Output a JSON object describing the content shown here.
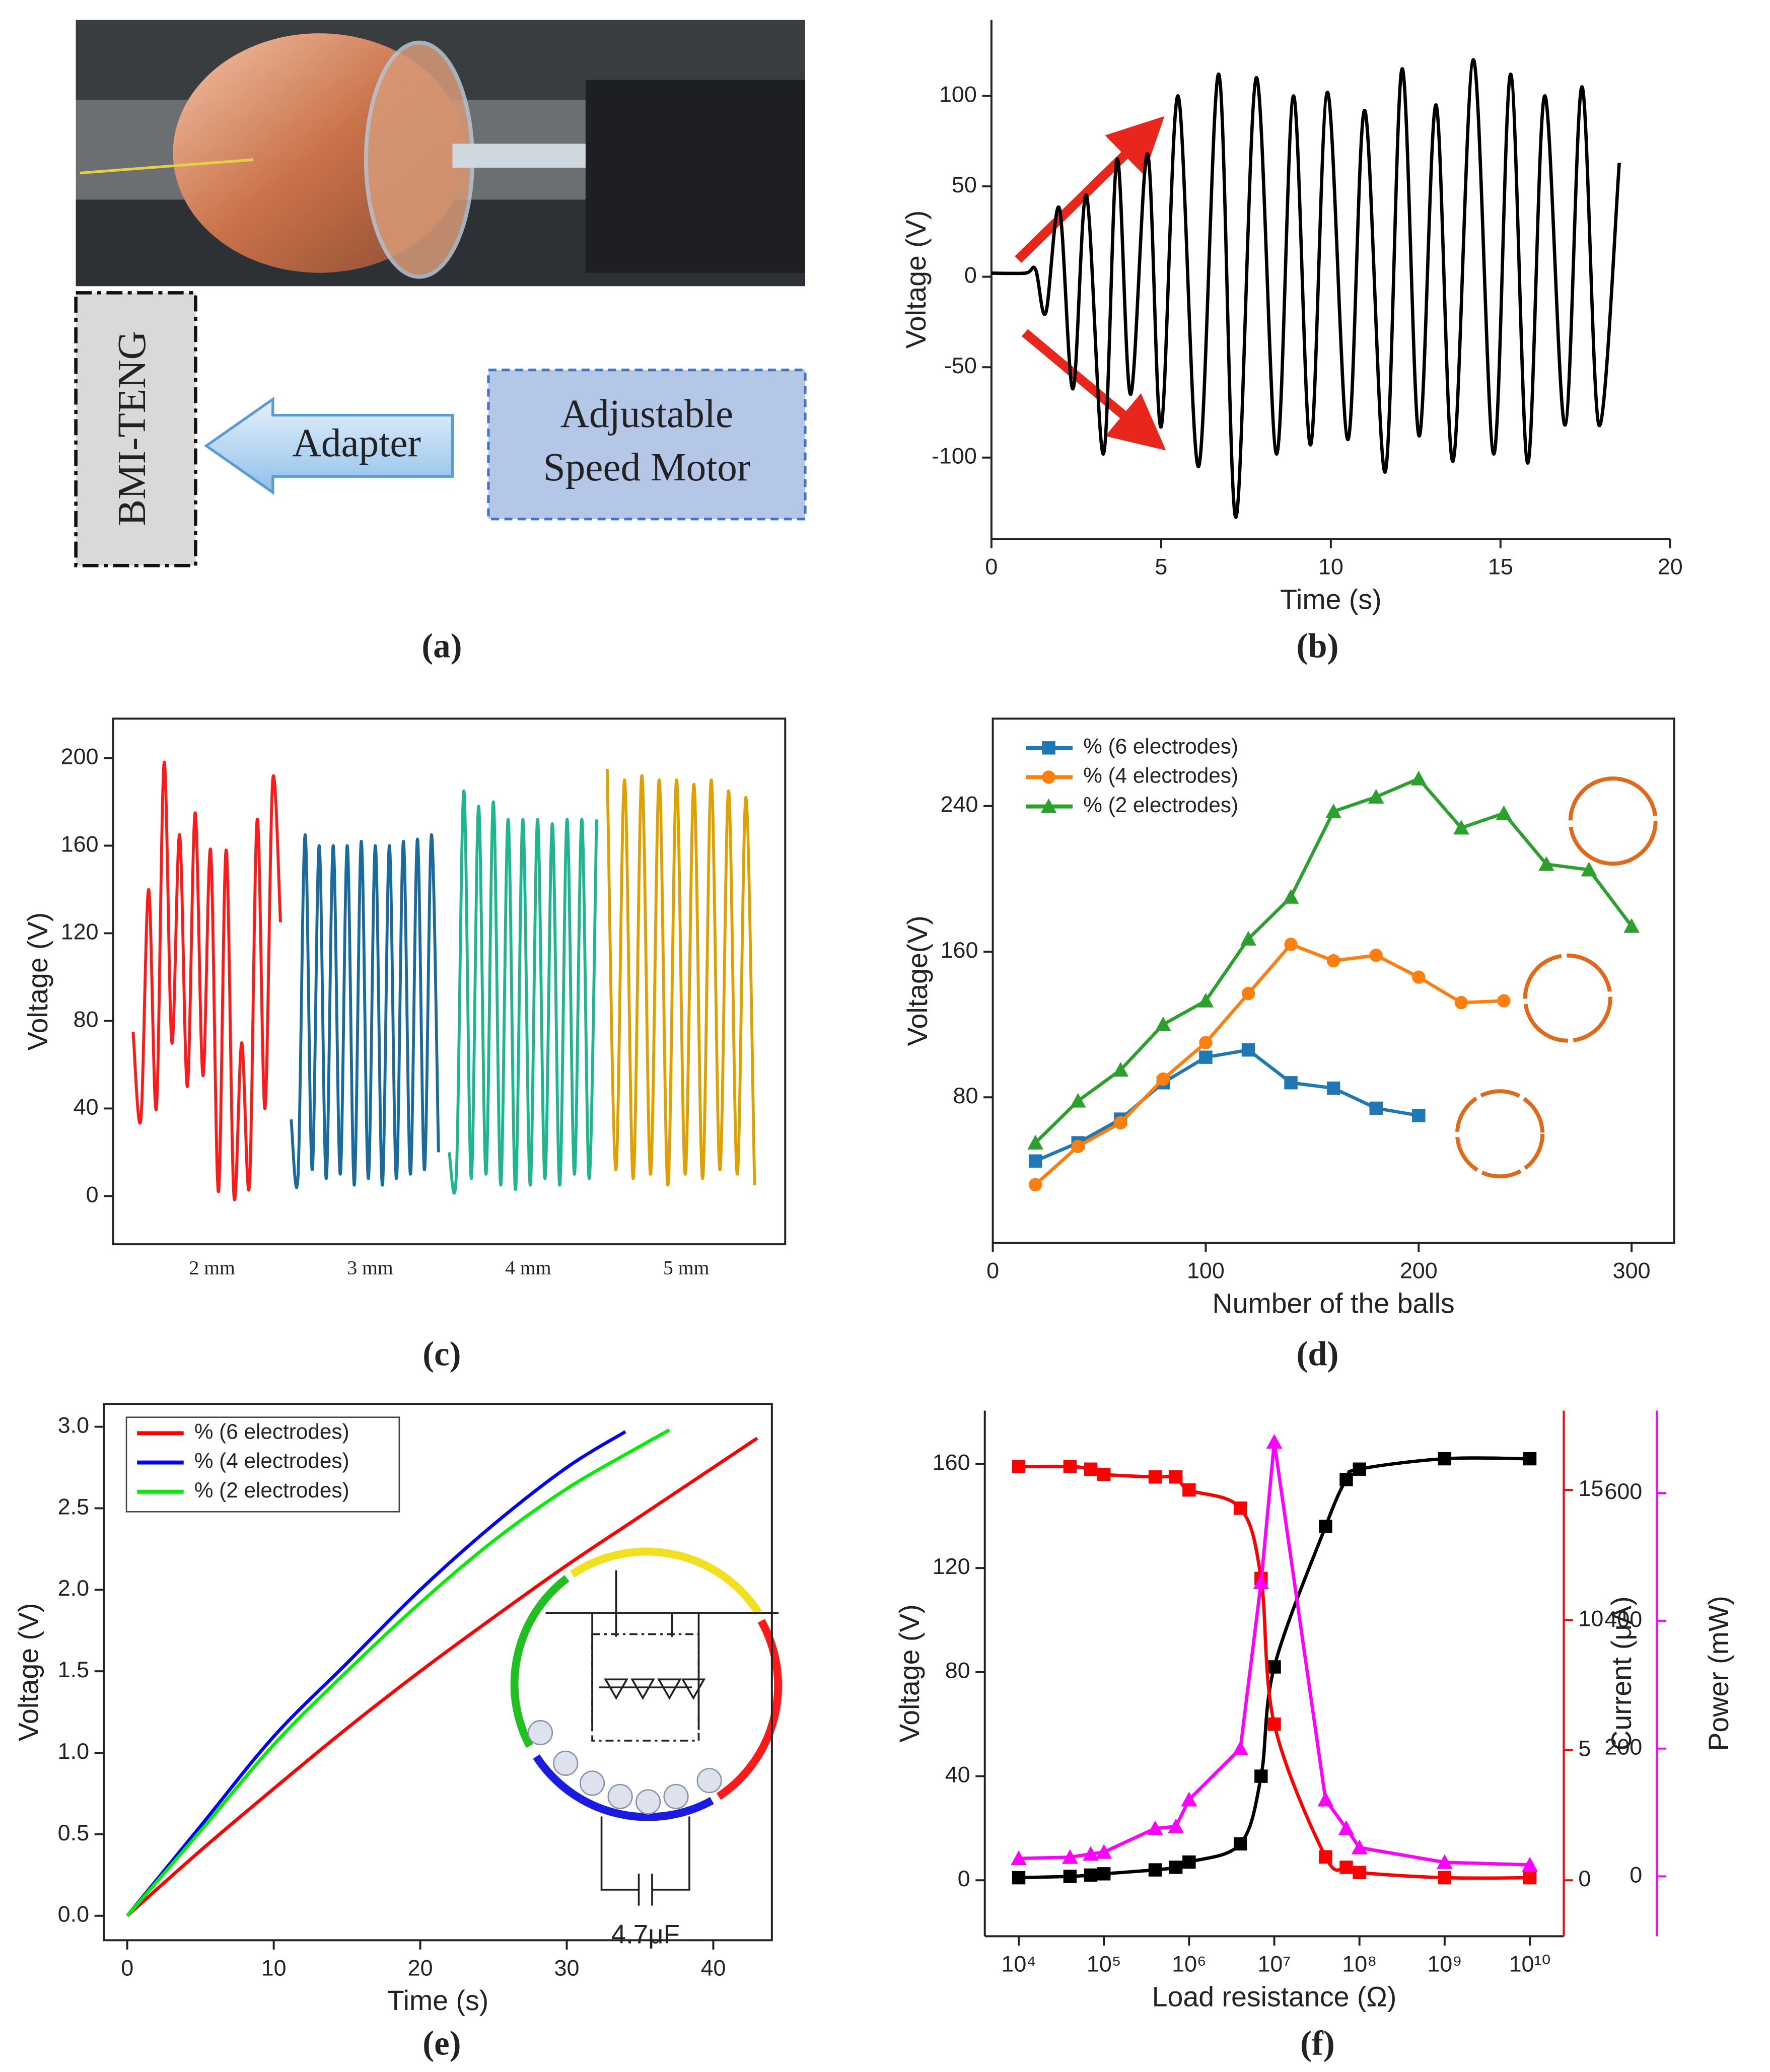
{
  "diagram": {
    "left_box": "BMI-TENG",
    "arrow": "Adapter",
    "right_box": [
      "Adjustable",
      "Speed Motor"
    ]
  },
  "captions": [
    "(a)",
    "(b)",
    "(c)",
    "(d)",
    "(e)",
    "(f)"
  ],
  "chart_data": [
    {
      "type": "line",
      "xlabel": "Time (s)",
      "ylabel": "Voltage (V)",
      "frame": "axes",
      "smooth": true,
      "xlim": [
        0,
        20
      ],
      "ylim": [
        -145,
        142
      ],
      "xticks": [
        0,
        5,
        10,
        15,
        20
      ],
      "yticks": [
        -100,
        -50,
        0,
        50,
        100
      ],
      "series": [
        {
          "color": "#000000",
          "x": [
            0,
            1,
            1.3,
            1.6,
            2.0,
            2.4,
            2.8,
            3.3,
            3.7,
            4.1,
            4.6,
            5.0,
            5.5,
            6.1,
            6.7,
            7.2,
            7.8,
            8.4,
            8.9,
            9.4,
            9.9,
            10.5,
            11.0,
            11.6,
            12.1,
            12.6,
            13.1,
            13.6,
            14.2,
            14.8,
            15.3,
            15.8,
            16.3,
            16.9,
            17.4,
            17.9,
            18.5
          ],
          "values": [
            2,
            2,
            4,
            -20,
            38,
            -62,
            45,
            -98,
            65,
            -65,
            68,
            -83,
            100,
            -105,
            112,
            -133,
            110,
            -98,
            100,
            -93,
            102,
            -90,
            92,
            -108,
            115,
            -88,
            95,
            -102,
            120,
            -98,
            112,
            -103,
            100,
            -82,
            105,
            -82,
            63
          ]
        }
      ]
    },
    {
      "type": "line",
      "ylabel": "Voltage (V)",
      "frame": "box",
      "smooth": true,
      "ylim": [
        -22,
        218
      ],
      "yticks": [
        0,
        40,
        80,
        120,
        160,
        200
      ],
      "series": [
        {
          "name": "2 mm",
          "color": "#ff1a1a",
          "values": [
            75,
            35,
            140,
            40,
            198,
            70,
            165,
            50,
            175,
            55,
            158,
            2,
            158,
            0,
            70,
            5,
            172,
            40,
            190,
            125
          ]
        },
        {
          "name": "3 mm",
          "color": "#1b6a9c",
          "values": [
            35,
            10,
            165,
            12,
            160,
            8,
            160,
            10,
            160,
            5,
            162,
            8,
            160,
            5,
            160,
            8,
            162,
            10,
            163,
            12,
            165,
            20
          ]
        },
        {
          "name": "4 mm",
          "color": "#1fb58f",
          "values": [
            20,
            12,
            185,
            8,
            178,
            10,
            180,
            5,
            172,
            3,
            172,
            5,
            172,
            8,
            170,
            5,
            172,
            10,
            172,
            8,
            172
          ]
        },
        {
          "name": "5 mm",
          "color": "#e0a000",
          "values": [
            195,
            12,
            190,
            8,
            192,
            10,
            190,
            5,
            190,
            10,
            188,
            8,
            190,
            12,
            185,
            10,
            182,
            5
          ]
        }
      ]
    },
    {
      "type": "line",
      "xlabel": "Number of the balls",
      "ylabel": "Voltage(V)",
      "frame": "box",
      "smooth": false,
      "legend": "upper left",
      "xlim": [
        0,
        320
      ],
      "ylim": [
        0,
        288
      ],
      "xticks": [
        0,
        100,
        200,
        300
      ],
      "yticks": [
        80,
        160,
        240
      ],
      "series": [
        {
          "name": "% (6 electrodes)",
          "color": "#1f77b4",
          "marker": "square",
          "x": [
            20,
            40,
            60,
            80,
            100,
            120,
            140,
            160,
            180,
            200
          ],
          "values": [
            45,
            55,
            68,
            88,
            102,
            106,
            88,
            85,
            74,
            70
          ]
        },
        {
          "name": "% (4 electrodes)",
          "color": "#ff7f0e",
          "marker": "circle",
          "x": [
            20,
            40,
            60,
            80,
            100,
            120,
            140,
            160,
            180,
            200,
            220,
            240
          ],
          "values": [
            32,
            53,
            66,
            90,
            110,
            137,
            164,
            155,
            158,
            146,
            132,
            133
          ]
        },
        {
          "name": "% (2 electrodes)",
          "color": "#2ca02c",
          "marker": "triangle",
          "x": [
            20,
            40,
            60,
            80,
            100,
            120,
            140,
            160,
            180,
            200,
            220,
            240,
            260,
            280,
            300
          ],
          "values": [
            55,
            78,
            95,
            120,
            133,
            167,
            190,
            237,
            245,
            255,
            228,
            236,
            208,
            205,
            174
          ]
        }
      ]
    },
    {
      "type": "line",
      "xlabel": "Time (s)",
      "ylabel": "Voltage (V)",
      "frame": "box",
      "smooth": true,
      "legend": "upper left",
      "legend_box": true,
      "annotations": [
        "4.7μF"
      ],
      "xlim": [
        -1.6,
        44
      ],
      "ylim": [
        -0.15,
        3.14
      ],
      "xticks": [
        0,
        10,
        20,
        30,
        40
      ],
      "yticks": [
        {
          "value": 0,
          "label": "0.0"
        },
        0.5,
        {
          "value": 1,
          "label": "1.0"
        },
        1.5,
        {
          "value": 2,
          "label": "2.0"
        },
        2.5,
        {
          "value": 3,
          "label": "3.0"
        }
      ],
      "series": [
        {
          "name": "% (6 electrodes)",
          "color": "#ff0000",
          "x": [
            0,
            5,
            10,
            15,
            20,
            25,
            30,
            35,
            40,
            43
          ],
          "values": [
            0,
            0.4,
            0.78,
            1.15,
            1.5,
            1.83,
            2.15,
            2.45,
            2.75,
            2.93
          ]
        },
        {
          "name": "% (4 electrodes)",
          "color": "#0000ff",
          "x": [
            0,
            5,
            10,
            15,
            20,
            25,
            30,
            34
          ],
          "values": [
            0,
            0.55,
            1.1,
            1.55,
            2.0,
            2.4,
            2.75,
            2.97
          ]
        },
        {
          "name": "% (2 electrodes)",
          "color": "#00ee00",
          "x": [
            0,
            5,
            10,
            15,
            20,
            25,
            30,
            35,
            37
          ],
          "values": [
            0,
            0.52,
            1.05,
            1.5,
            1.92,
            2.3,
            2.62,
            2.88,
            2.98
          ]
        }
      ]
    },
    {
      "type": "line",
      "xlabel": "Load resistance (Ω)",
      "ylabel": "Voltage (V)",
      "y2label": "Current (μA)",
      "y3label": "Power (mW)",
      "frame": "axes",
      "smooth": true,
      "xlog": true,
      "y2color": "#ff0000",
      "y3color": "#ff00ff",
      "xlim": [
        4000,
        25000000000
      ],
      "ylim": [
        -21.5,
        180.5
      ],
      "y2lim": [
        -2.15,
        18.05
      ],
      "y3lim": [
        -93.75,
        729
      ],
      "xticks": [
        {
          "value": 10000,
          "label": "10⁴"
        },
        {
          "value": 100000,
          "label": "10⁵"
        },
        {
          "value": 1000000,
          "label": "10⁶"
        },
        {
          "value": 10000000,
          "label": "10⁷"
        },
        {
          "value": 100000000,
          "label": "10⁸"
        },
        {
          "value": 1000000000,
          "label": "10⁹"
        },
        {
          "value": 10000000000,
          "label": "10¹⁰"
        }
      ],
      "yticks": [
        0,
        40,
        80,
        120,
        160
      ],
      "y2ticks": [
        0,
        5,
        10,
        15
      ],
      "y3ticks": [
        0,
        200,
        400,
        600
      ],
      "series": [
        {
          "color": "#000000",
          "marker": "square",
          "x": [
            10000,
            40000,
            70000,
            100000,
            400000,
            700000,
            1000000,
            4000000,
            7000000,
            10000000,
            40000000,
            70000000,
            100000000,
            1000000000,
            10000000000
          ],
          "values": [
            1,
            1.5,
            2,
            2.5,
            4,
            5,
            7,
            14,
            40,
            82,
            136,
            154,
            158,
            162,
            162
          ]
        },
        {
          "color": "#ff0000",
          "marker": "square",
          "axis": "y2",
          "x": [
            10000,
            40000,
            70000,
            100000,
            400000,
            700000,
            1000000,
            4000000,
            7000000,
            10000000,
            40000000,
            70000000,
            100000000,
            1000000000,
            10000000000
          ],
          "values": [
            15.9,
            15.9,
            15.8,
            15.6,
            15.5,
            15.5,
            15,
            14.3,
            11.6,
            6,
            0.9,
            0.5,
            0.3,
            0.1,
            0.1
          ]
        },
        {
          "color": "#ff00ff",
          "marker": "triangle",
          "axis": "y3",
          "smooth": false,
          "x": [
            10000,
            40000,
            70000,
            100000,
            400000,
            700000,
            1000000,
            4000000,
            7000000,
            10000000,
            40000000,
            70000000,
            100000000,
            1000000000,
            10000000000
          ],
          "values": [
            28,
            30,
            35,
            38,
            75,
            78,
            120,
            200,
            460,
            680,
            120,
            75,
            45,
            22,
            18
          ]
        }
      ]
    }
  ]
}
